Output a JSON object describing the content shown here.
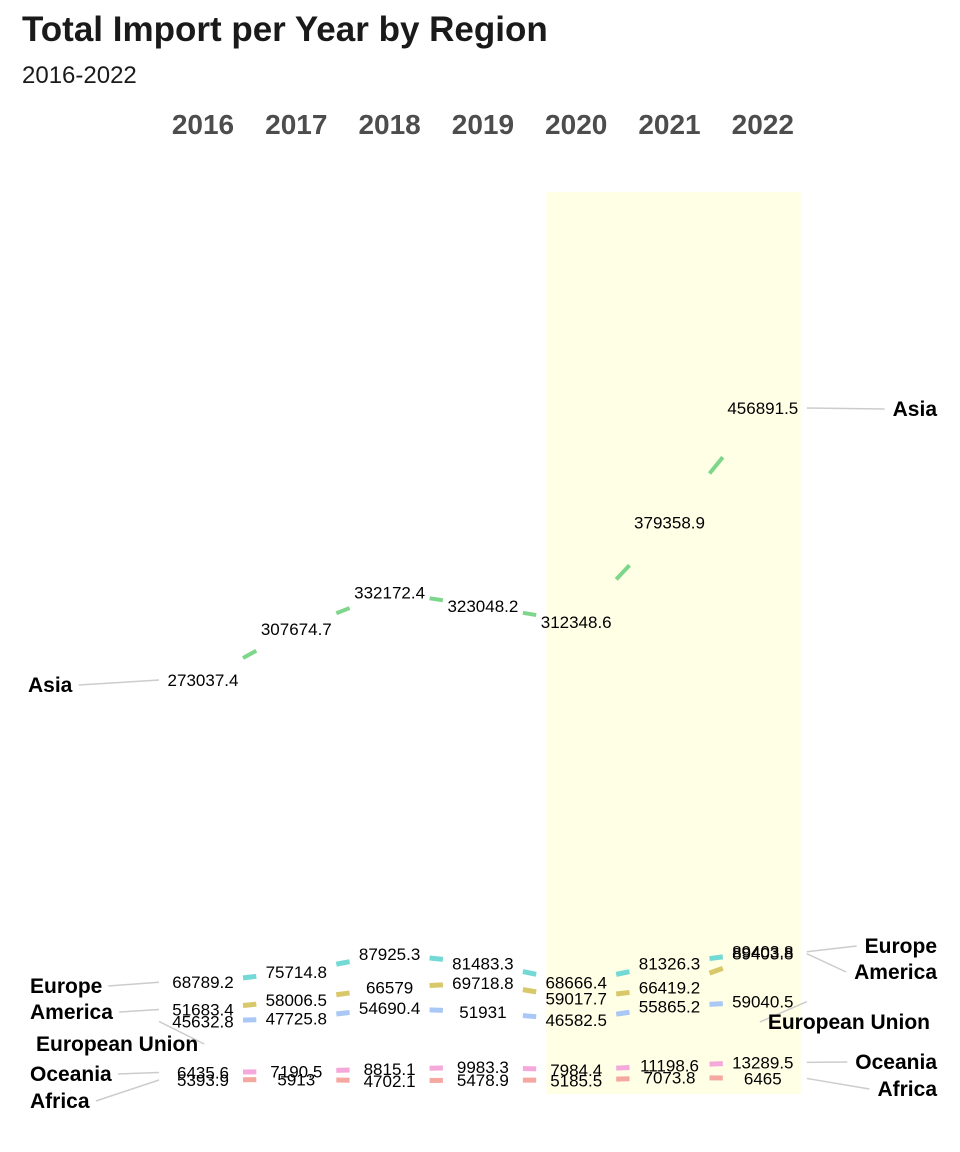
{
  "title": "Total Import per Year by Region",
  "subtitle": "2016-2022",
  "chart_data": {
    "type": "line",
    "chart_style": "slope chart with value labels",
    "title": "Total Import per Year by Region",
    "subtitle": "2016-2022",
    "xlabel": "",
    "ylabel": "",
    "categories": [
      "2016",
      "2017",
      "2018",
      "2019",
      "2020",
      "2021",
      "2022"
    ],
    "highlight_range": [
      "2020",
      "2022"
    ],
    "highlight_color": "#FFFFE6",
    "ylim": [
      0,
      470000
    ],
    "series": [
      {
        "name": "Asia",
        "color": "#7ED68A",
        "values": [
          273037.4,
          307674.7,
          332172.4,
          323048.2,
          312348.6,
          379358.9,
          456891.5
        ]
      },
      {
        "name": "Europe",
        "color": "#73D9D5",
        "values": [
          68789.2,
          75714.8,
          87925.3,
          81483.3,
          68666.4,
          81326.3,
          89403.8
        ]
      },
      {
        "name": "America",
        "color": "#D9C86A",
        "values": [
          51683.4,
          58006.5,
          66579,
          69718.8,
          59017.7,
          66419.2,
          89403.8
        ]
      },
      {
        "name": "European Union",
        "color": "#A9C8F5",
        "values": [
          45632.8,
          47725.8,
          54690.4,
          51931,
          46582.5,
          55865.2,
          59040.5
        ]
      },
      {
        "name": "Oceania",
        "color": "#F5A8DA",
        "values": [
          6435.6,
          7190.5,
          8815.1,
          9983.3,
          7984.4,
          11198.6,
          13289.5
        ]
      },
      {
        "name": "Africa",
        "color": "#F5A8A0",
        "values": [
          5393.9,
          5913,
          4702.1,
          5478.9,
          5185.5,
          7073.8,
          6465
        ]
      }
    ],
    "legend": "labels at both ends of each line"
  }
}
